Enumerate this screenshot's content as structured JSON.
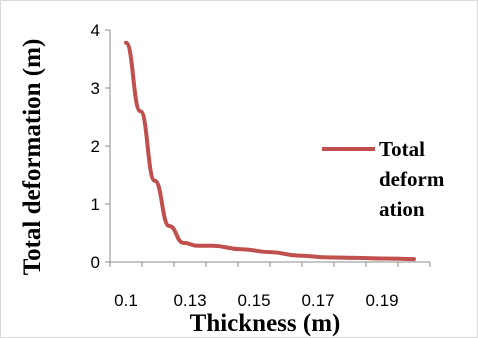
{
  "chart_data": {
    "type": "line",
    "x_values": [
      0.1,
      0.105,
      0.11,
      0.115,
      0.12,
      0.125,
      0.13,
      0.14,
      0.15,
      0.16,
      0.17,
      0.18,
      0.19,
      0.2
    ],
    "series": [
      {
        "name": "Total deformation",
        "legend_lines": [
          "Total",
          "deform",
          "ation"
        ],
        "color": "#c0504d",
        "values": [
          3.78,
          2.6,
          1.4,
          0.62,
          0.33,
          0.28,
          0.28,
          0.22,
          0.17,
          0.11,
          0.08,
          0.07,
          0.06,
          0.05
        ]
      }
    ],
    "x_ticks": [
      "0.1",
      "0.13",
      "0.15",
      "0.17",
      "0.19"
    ],
    "y_ticks": [
      "0",
      "1",
      "2",
      "3",
      "4"
    ],
    "ylim": [
      0,
      4
    ],
    "xlabel": "Thickness (m)",
    "ylabel": "Total deformation (m)",
    "grid": false,
    "legend_position": "right"
  }
}
